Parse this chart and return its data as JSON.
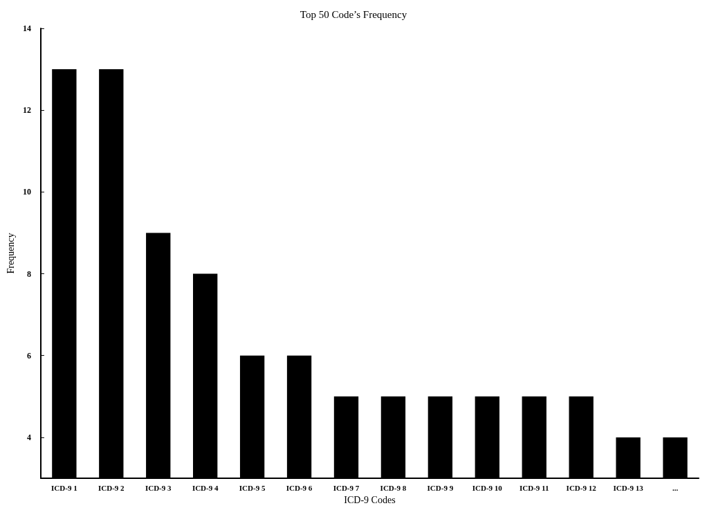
{
  "chart_data": {
    "type": "bar",
    "title": "Top 50 Code’s Frequency",
    "xlabel": "ICD-9 Codes",
    "ylabel": "Frequency",
    "categories": [
      "ICD-9 1",
      "ICD-9 2",
      "ICD-9 3",
      "ICD-9 4",
      "ICD-9 5",
      "ICD-9 6",
      "ICD-9 7",
      "ICD-9 8",
      "ICD-9 9",
      "ICD-9 10",
      "ICD-9 11",
      "ICD-9 12",
      "ICD-9 13",
      "..."
    ],
    "values": [
      13,
      13,
      9,
      8,
      6,
      6,
      5,
      5,
      5,
      5,
      5,
      5,
      4,
      4
    ],
    "color": "#000000",
    "ylim": [
      3,
      14
    ],
    "yticks": [
      4,
      6,
      8,
      10,
      12,
      14
    ],
    "grid": false
  }
}
